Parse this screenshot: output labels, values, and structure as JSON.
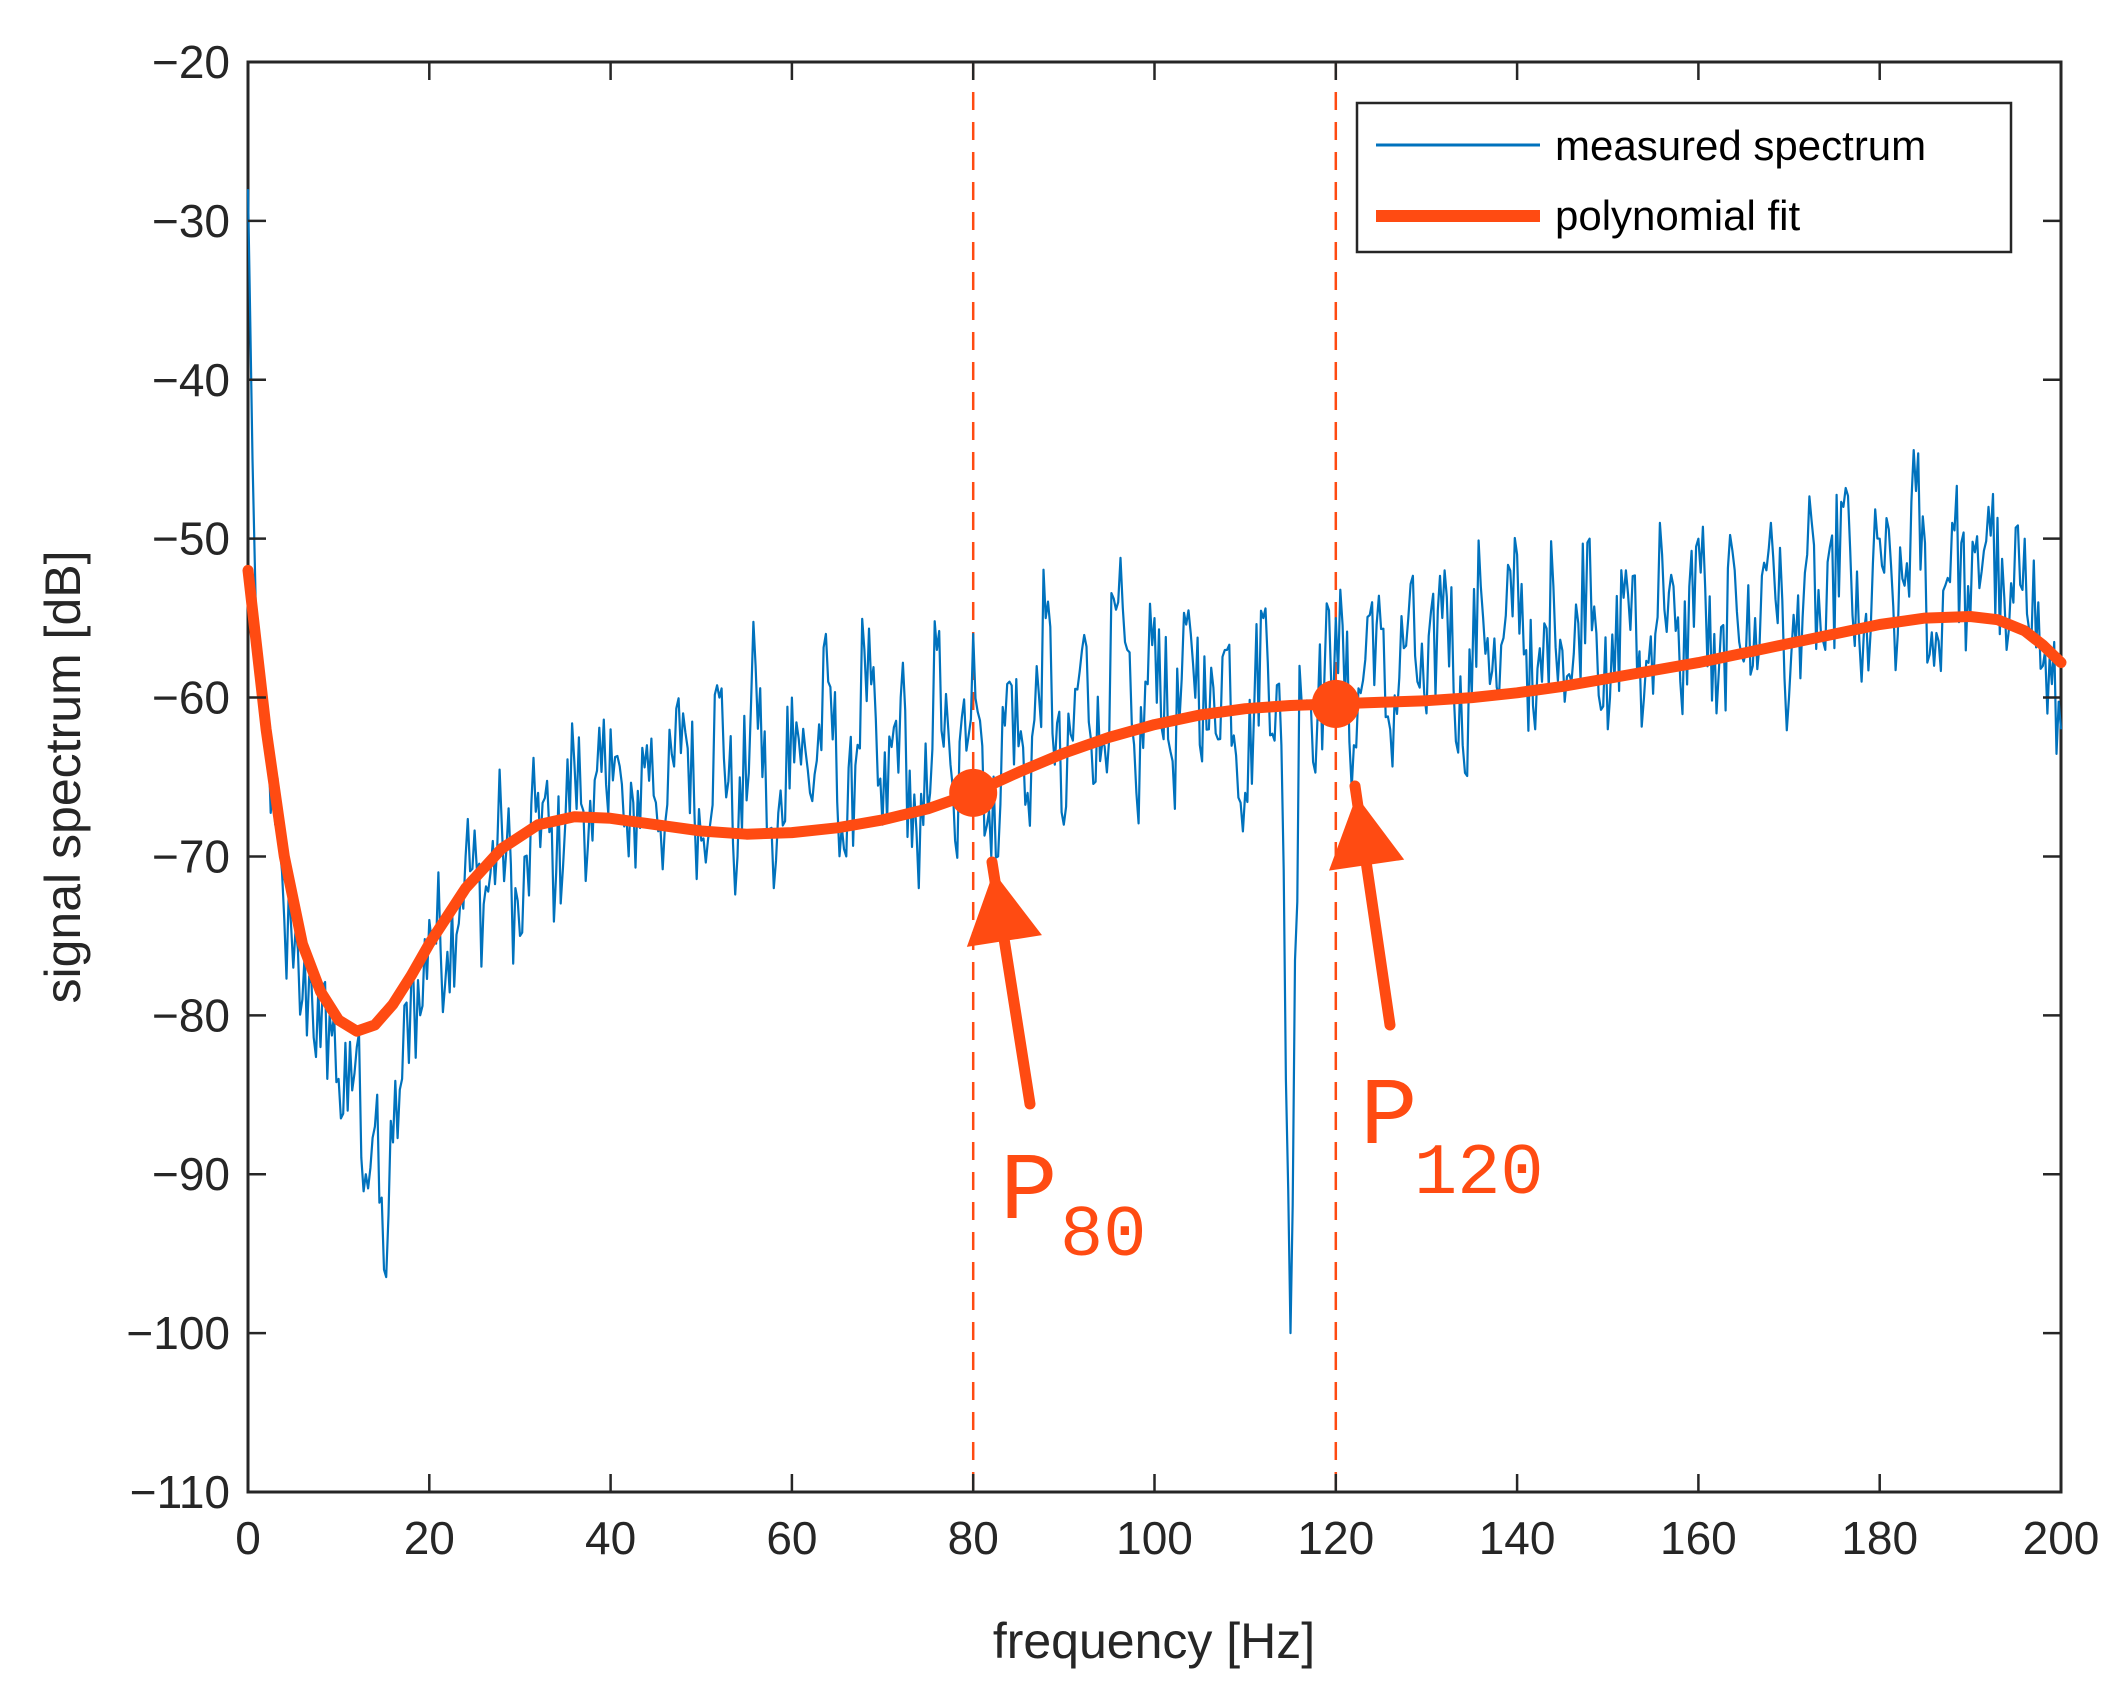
{
  "chart_data": {
    "type": "line",
    "title": "",
    "xlabel": "frequency [Hz]",
    "ylabel": "signal spectrum [dB]",
    "xlim": [
      0,
      200
    ],
    "ylim": [
      -110,
      -20
    ],
    "xticks": [
      0,
      20,
      40,
      60,
      80,
      100,
      120,
      140,
      160,
      180,
      200
    ],
    "yticks": [
      -20,
      -30,
      -40,
      -50,
      -60,
      -70,
      -80,
      -90,
      -100,
      -110
    ],
    "xtick_labels": [
      "0",
      "20",
      "40",
      "60",
      "80",
      "100",
      "120",
      "140",
      "160",
      "180",
      "200"
    ],
    "ytick_labels": [
      "−20",
      "−30",
      "−40",
      "−50",
      "−60",
      "−70",
      "−80",
      "−90",
      "−100",
      "−110"
    ],
    "grid": false,
    "legend_position": "top-right",
    "series": [
      {
        "name": "measured spectrum",
        "color": "#0072bd",
        "note_shape": "noisy measured spectrum",
        "x": [
          0,
          0.5,
          1,
          2,
          3,
          4,
          5,
          6,
          7,
          8,
          9,
          10,
          11,
          12,
          13,
          14,
          15,
          16,
          17,
          18,
          19,
          20,
          22,
          24,
          26,
          28,
          30,
          32,
          34,
          36,
          38,
          40,
          42,
          44,
          46,
          48,
          50,
          52,
          54,
          56,
          58,
          60,
          62,
          64,
          66,
          68,
          70,
          72,
          74,
          76,
          78,
          80,
          82,
          84,
          86,
          88,
          90,
          92,
          94,
          96,
          98,
          100,
          102,
          104,
          106,
          108,
          110,
          112,
          114,
          115,
          116,
          118,
          120,
          122,
          124,
          126,
          128,
          130,
          132,
          134,
          136,
          138,
          140,
          142,
          144,
          146,
          148,
          150,
          152,
          154,
          156,
          158,
          160,
          162,
          164,
          166,
          168,
          170,
          172,
          174,
          176,
          178,
          180,
          182,
          184,
          186,
          188,
          190,
          192,
          194,
          196,
          198,
          200
        ],
        "y": [
          -28,
          -45,
          -58,
          -63,
          -68,
          -74,
          -77,
          -79,
          -78,
          -82,
          -80,
          -84,
          -86,
          -82,
          -90,
          -87,
          -96,
          -88,
          -84,
          -78,
          -80,
          -74,
          -76,
          -70,
          -73,
          -68,
          -75,
          -66,
          -71,
          -64,
          -69,
          -62,
          -70,
          -63,
          -68,
          -61,
          -69,
          -60,
          -70,
          -58,
          -72,
          -60,
          -66,
          -59,
          -70,
          -57,
          -68,
          -60,
          -72,
          -57,
          -69,
          -56,
          -70,
          -59,
          -66,
          -55,
          -68,
          -57,
          -64,
          -54,
          -66,
          -55,
          -64,
          -56,
          -62,
          -57,
          -66,
          -55,
          -63,
          -100,
          -58,
          -61,
          -55,
          -63,
          -54,
          -62,
          -55,
          -61,
          -52,
          -63,
          -53,
          -60,
          -51,
          -62,
          -53,
          -59,
          -50,
          -62,
          -52,
          -60,
          -51,
          -59,
          -50,
          -61,
          -52,
          -58,
          -49,
          -60,
          -51,
          -57,
          -48,
          -59,
          -50,
          -56,
          -47,
          -58,
          -49,
          -55,
          -48,
          -57,
          -50,
          -58,
          -62
        ]
      },
      {
        "name": "polynomial fit",
        "color": "#ff4b12",
        "x": [
          0,
          2,
          4,
          6,
          8,
          10,
          12,
          14,
          16,
          18,
          20,
          24,
          28,
          32,
          36,
          40,
          45,
          50,
          55,
          60,
          65,
          70,
          75,
          80,
          85,
          90,
          95,
          100,
          105,
          110,
          115,
          120,
          125,
          130,
          135,
          140,
          145,
          150,
          155,
          160,
          165,
          170,
          175,
          180,
          185,
          190,
          193,
          196,
          198,
          200
        ],
        "y": [
          -52,
          -62,
          -70,
          -75.5,
          -78.5,
          -80.3,
          -81,
          -80.6,
          -79.3,
          -77.5,
          -75.5,
          -72,
          -69.5,
          -68,
          -67.5,
          -67.6,
          -68,
          -68.4,
          -68.6,
          -68.5,
          -68.2,
          -67.7,
          -67,
          -66,
          -64.7,
          -63.5,
          -62.5,
          -61.7,
          -61.1,
          -60.7,
          -60.5,
          -60.4,
          -60.3,
          -60.2,
          -60,
          -59.7,
          -59.3,
          -58.8,
          -58.3,
          -57.8,
          -57.2,
          -56.6,
          -56,
          -55.4,
          -55,
          -54.9,
          -55.1,
          -55.8,
          -56.7,
          -57.8
        ]
      }
    ],
    "markers": [
      {
        "x": 80,
        "y": -66,
        "label": "P",
        "subscript": "80"
      },
      {
        "x": 120,
        "y": -60.4,
        "label": "P",
        "subscript": "120"
      }
    ],
    "vlines": [
      80,
      120
    ],
    "vline_color": "#ff4b12"
  }
}
